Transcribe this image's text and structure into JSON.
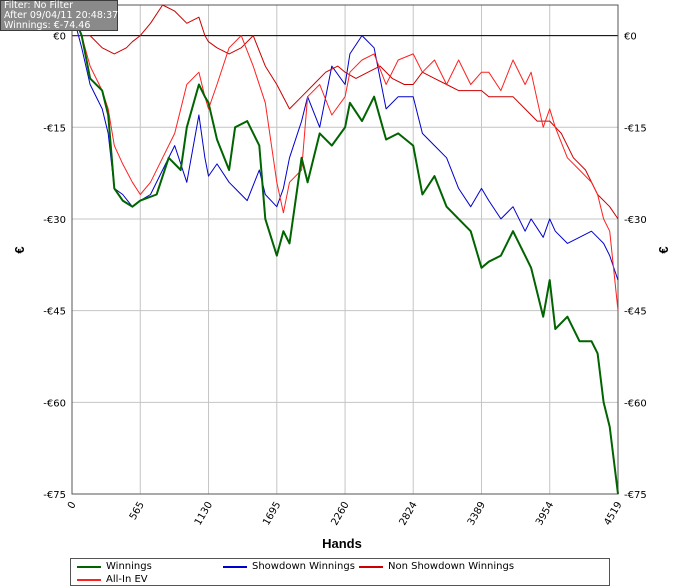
{
  "info": {
    "filter": "Filter: No Filter",
    "after": "After 09/04/11 20:48:37",
    "winnings": "Winnings: €-74.46"
  },
  "chart_data": {
    "type": "line",
    "title": "",
    "xlabel": "Hands",
    "ylabel": "€",
    "xlim": [
      0,
      4519
    ],
    "ylim": [
      -75,
      5
    ],
    "x_ticks": [
      "0",
      "565",
      "1130",
      "1695",
      "2260",
      "2824",
      "3389",
      "3954",
      "4519"
    ],
    "y_ticks": [
      "€0",
      "-€15",
      "-€30",
      "-€45",
      "-€60",
      "-€75"
    ],
    "y_tick_values": [
      0,
      -15,
      -30,
      -45,
      -60,
      -75
    ],
    "grid": true,
    "legend_position": "bottom",
    "series": [
      {
        "name": "Winnings",
        "color": "#006400",
        "x": [
          0,
          80,
          150,
          250,
          300,
          350,
          420,
          500,
          565,
          700,
          800,
          900,
          950,
          1050,
          1100,
          1130,
          1200,
          1300,
          1350,
          1450,
          1550,
          1600,
          1695,
          1750,
          1800,
          1900,
          1950,
          2050,
          2150,
          2260,
          2300,
          2400,
          2500,
          2600,
          2700,
          2824,
          2900,
          3000,
          3100,
          3200,
          3300,
          3389,
          3450,
          3550,
          3650,
          3750,
          3800,
          3900,
          3954,
          4000,
          4100,
          4200,
          4300,
          4350,
          4400,
          4450,
          4519
        ],
        "y": [
          4,
          0,
          -7,
          -9,
          -13,
          -25,
          -27,
          -28,
          -27,
          -26,
          -20,
          -22,
          -15,
          -8,
          -10,
          -11,
          -17,
          -22,
          -15,
          -14,
          -18,
          -30,
          -36,
          -32,
          -34,
          -20,
          -24,
          -16,
          -18,
          -15,
          -11,
          -14,
          -10,
          -17,
          -16,
          -18,
          -26,
          -23,
          -28,
          -30,
          -32,
          -38,
          -37,
          -36,
          -32,
          -36,
          -38,
          -46,
          -40,
          -48,
          -46,
          -50,
          -50,
          -52,
          -60,
          -64,
          -75
        ]
      },
      {
        "name": "Showdown Winnings",
        "color": "#0000cd",
        "x": [
          0,
          80,
          150,
          250,
          300,
          350,
          420,
          500,
          565,
          650,
          750,
          850,
          950,
          1050,
          1100,
          1130,
          1200,
          1300,
          1350,
          1450,
          1550,
          1600,
          1695,
          1750,
          1800,
          1900,
          1950,
          2050,
          2150,
          2260,
          2300,
          2400,
          2500,
          2600,
          2700,
          2824,
          2900,
          3000,
          3100,
          3200,
          3300,
          3389,
          3450,
          3550,
          3650,
          3750,
          3800,
          3900,
          3954,
          4000,
          4100,
          4200,
          4300,
          4350,
          4400,
          4450,
          4519
        ],
        "y": [
          4,
          -2,
          -8,
          -12,
          -16,
          -25,
          -26,
          -28,
          -27,
          -26,
          -22,
          -18,
          -24,
          -13,
          -20,
          -23,
          -21,
          -24,
          -25,
          -27,
          -22,
          -26,
          -28,
          -25,
          -20,
          -14,
          -10,
          -15,
          -5,
          -8,
          -3,
          0,
          -2,
          -12,
          -10,
          -10,
          -16,
          -18,
          -20,
          -25,
          -28,
          -25,
          -27,
          -30,
          -28,
          -32,
          -30,
          -33,
          -30,
          -32,
          -34,
          -33,
          -32,
          -33,
          -34,
          -36,
          -40
        ]
      },
      {
        "name": "Non Showdown Winnings",
        "color": "#cc0000",
        "x": [
          0,
          80,
          150,
          250,
          350,
          450,
          500,
          565,
          650,
          750,
          850,
          950,
          1050,
          1100,
          1130,
          1200,
          1300,
          1400,
          1500,
          1600,
          1695,
          1800,
          1900,
          2000,
          2100,
          2200,
          2260,
          2350,
          2450,
          2550,
          2650,
          2750,
          2824,
          2900,
          3000,
          3100,
          3200,
          3300,
          3389,
          3450,
          3550,
          3650,
          3750,
          3850,
          3954,
          4050,
          4150,
          4250,
          4350,
          4450,
          4519
        ],
        "y": [
          0,
          0,
          0,
          -2,
          -3,
          -2,
          -1,
          0,
          2,
          5,
          4,
          2,
          3,
          0,
          -1,
          -2,
          -3,
          -2,
          0,
          -5,
          -8,
          -12,
          -10,
          -8,
          -6,
          -5,
          -6,
          -7,
          -6,
          -5,
          -7,
          -8,
          -8,
          -6,
          -7,
          -8,
          -9,
          -9,
          -9,
          -10,
          -10,
          -10,
          -12,
          -14,
          -14,
          -16,
          -20,
          -22,
          -26,
          -28,
          -30
        ]
      },
      {
        "name": "All-In EV",
        "color": "#ff2020",
        "x": [
          0,
          80,
          150,
          250,
          300,
          350,
          420,
          500,
          565,
          650,
          750,
          850,
          950,
          1050,
          1100,
          1130,
          1200,
          1300,
          1400,
          1500,
          1600,
          1695,
          1750,
          1800,
          1900,
          1950,
          2050,
          2150,
          2260,
          2300,
          2400,
          2500,
          2600,
          2700,
          2824,
          2900,
          3000,
          3100,
          3200,
          3300,
          3389,
          3450,
          3550,
          3650,
          3750,
          3800,
          3900,
          3954,
          4000,
          4100,
          4200,
          4300,
          4350,
          4400,
          4450,
          4519
        ],
        "y": [
          4,
          0,
          -5,
          -9,
          -12,
          -18,
          -21,
          -24,
          -26,
          -24,
          -20,
          -16,
          -8,
          -6,
          -10,
          -12,
          -8,
          -2,
          0,
          -5,
          -11,
          -24,
          -29,
          -24,
          -22,
          -10,
          -8,
          -13,
          -10,
          -6,
          -4,
          -3,
          -8,
          -4,
          -3,
          -6,
          -4,
          -8,
          -4,
          -8,
          -6,
          -6,
          -9,
          -4,
          -8,
          -6,
          -15,
          -12,
          -15,
          -20,
          -22,
          -24,
          -26,
          -30,
          -32,
          -45
        ]
      }
    ]
  }
}
